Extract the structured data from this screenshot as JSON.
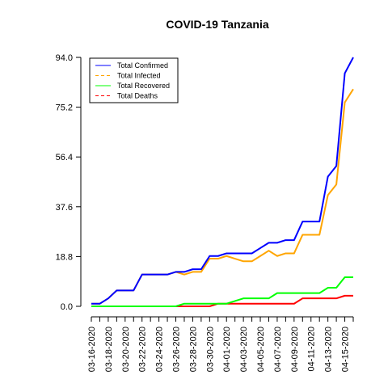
{
  "chart_data": {
    "type": "line",
    "title": "COVID-19 Tanzania",
    "xlabel": "",
    "ylabel": "",
    "ylim": [
      0.0,
      94.0
    ],
    "grid": false,
    "legend_placement": "top-left",
    "y_ticks": [
      "0.0",
      "18.8",
      "37.6",
      "56.4",
      "75.2",
      "94.0"
    ],
    "x": [
      "03-16-2020",
      "03-17-2020",
      "03-18-2020",
      "03-19-2020",
      "03-20-2020",
      "03-21-2020",
      "03-22-2020",
      "03-23-2020",
      "03-24-2020",
      "03-25-2020",
      "03-26-2020",
      "03-27-2020",
      "03-28-2020",
      "03-29-2020",
      "03-30-2020",
      "03-31-2020",
      "04-01-2020",
      "04-02-2020",
      "04-03-2020",
      "04-04-2020",
      "04-05-2020",
      "04-06-2020",
      "04-07-2020",
      "04-08-2020",
      "04-09-2020",
      "04-10-2020",
      "04-11-2020",
      "04-12-2020",
      "04-13-2020",
      "04-14-2020",
      "04-15-2020",
      "04-16-2020"
    ],
    "x_tick_labels": [
      "03-16-2020",
      "03-18-2020",
      "03-20-2020",
      "03-22-2020",
      "03-24-2020",
      "03-26-2020",
      "03-28-2020",
      "03-30-2020",
      "04-01-2020",
      "04-03-2020",
      "04-05-2020",
      "04-07-2020",
      "04-09-2020",
      "04-11-2020",
      "04-13-2020",
      "04-15-2020"
    ],
    "series": [
      {
        "name": "Total Confirmed",
        "color": "#0000ff",
        "dash": "solid",
        "values": [
          1,
          1,
          3,
          6,
          6,
          6,
          12,
          12,
          12,
          12,
          13,
          13,
          14,
          14,
          19,
          19,
          20,
          20,
          20,
          20,
          22,
          24,
          24,
          25,
          25,
          32,
          32,
          32,
          49,
          53,
          88,
          94
        ]
      },
      {
        "name": "Total Infected",
        "color": "#ffa500",
        "dash": "dashed",
        "values": [
          1,
          1,
          3,
          6,
          6,
          6,
          12,
          12,
          12,
          12,
          13,
          12,
          13,
          13,
          18,
          18,
          19,
          18,
          17,
          17,
          19,
          21,
          19,
          20,
          20,
          27,
          27,
          27,
          42,
          46,
          77,
          82
        ]
      },
      {
        "name": "Total Recovered",
        "color": "#00ff00",
        "dash": "solid",
        "values": [
          0,
          0,
          0,
          0,
          0,
          0,
          0,
          0,
          0,
          0,
          0,
          1,
          1,
          1,
          1,
          1,
          1,
          2,
          3,
          3,
          3,
          3,
          5,
          5,
          5,
          5,
          5,
          5,
          7,
          7,
          11,
          11
        ]
      },
      {
        "name": "Total Deaths",
        "color": "#ff0000",
        "dash": "dashed",
        "values": [
          0,
          0,
          0,
          0,
          0,
          0,
          0,
          0,
          0,
          0,
          0,
          0,
          0,
          0,
          0,
          1,
          1,
          1,
          1,
          1,
          1,
          1,
          1,
          1,
          1,
          3,
          3,
          3,
          3,
          3,
          4,
          4
        ]
      }
    ]
  }
}
